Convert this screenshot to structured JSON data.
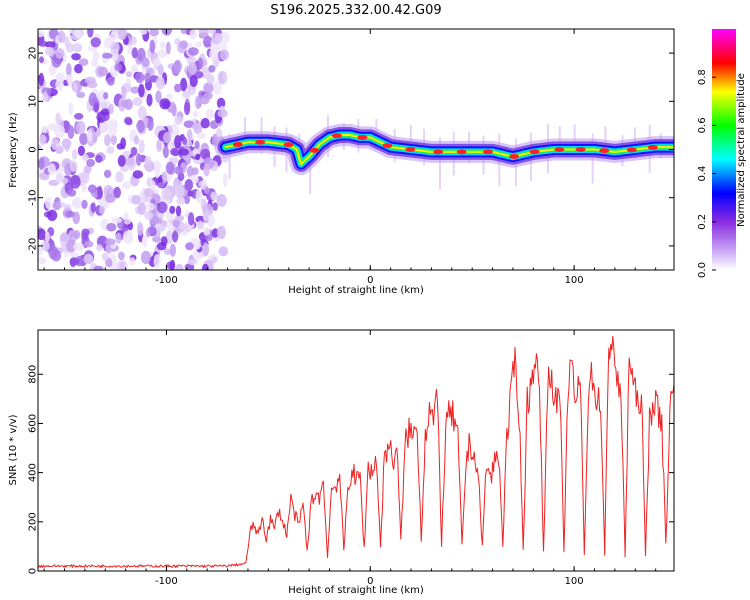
{
  "title": "S196.2025.332.00.42.G09",
  "chart_data": [
    {
      "type": "heatmap",
      "xlabel": "Height of straight line (km)",
      "ylabel": "Frequency (Hz)",
      "xlim": [
        -163,
        149
      ],
      "ylim": [
        -25,
        25
      ],
      "xticks": [
        -100,
        0,
        100
      ],
      "xtick_labels": [
        "-100",
        "0",
        "100"
      ],
      "yticks": [
        -20,
        -10,
        0,
        10,
        20
      ],
      "ytick_labels": [
        "-20",
        "-10",
        "0",
        "10",
        "20"
      ],
      "noise_region_x": [
        -163,
        -71
      ],
      "ridge": {
        "x": [
          -71,
          -60,
          -50,
          -40,
          -36,
          -34,
          -30,
          -25,
          -20,
          -15,
          -10,
          -5,
          0,
          5,
          10,
          20,
          30,
          40,
          50,
          60,
          70,
          80,
          90,
          100,
          110,
          120,
          130,
          140,
          149
        ],
        "freq": [
          0.5,
          1.5,
          1.5,
          1.0,
          0,
          -3.0,
          -1.5,
          1.0,
          2.5,
          3.0,
          3.0,
          2.5,
          2.5,
          1.5,
          0.5,
          0,
          -0.5,
          -0.5,
          -0.5,
          -0.5,
          -1.5,
          -0.5,
          0,
          0,
          0,
          -0.5,
          0,
          0.5,
          0.5
        ]
      },
      "colorbar": {
        "label": "Normalized spectral amplitude",
        "range": [
          0,
          1
        ],
        "ticks": [
          0.0,
          0.2,
          0.4,
          0.6,
          0.8
        ],
        "tick_labels": [
          "0.0",
          "0.2",
          "0.4",
          "0.6",
          "0.8"
        ],
        "colors": [
          "#ffffff",
          "#8a2be2",
          "#0000ff",
          "#00ffff",
          "#00ff00",
          "#ffff00",
          "#ff0000",
          "#ff00ff"
        ]
      }
    },
    {
      "type": "line",
      "xlabel": "Height of straight line (km)",
      "ylabel": "SNR (10 * v/v)",
      "xlim": [
        -163,
        149
      ],
      "ylim": [
        0,
        980
      ],
      "xticks": [
        -100,
        0,
        100
      ],
      "xtick_labels": [
        "-100",
        "0",
        "100"
      ],
      "yticks": [
        0,
        200,
        400,
        600,
        800
      ],
      "ytick_labels": [
        "0",
        "200",
        "400",
        "600",
        "800"
      ],
      "color": "#ee2222",
      "series": {
        "x": [
          -163,
          -71,
          -61,
          -59,
          -57,
          -55,
          -53,
          -51,
          -49,
          -47,
          -45,
          -43,
          -41,
          -39,
          -37,
          -35,
          -33,
          -31,
          -29,
          -27,
          -25,
          -23,
          -21,
          -19,
          -17,
          -15,
          -13,
          -11,
          -9,
          -7,
          -5,
          -3,
          -1,
          1,
          3,
          5,
          7,
          9,
          11,
          13,
          15,
          17,
          19,
          21,
          23,
          25,
          27,
          29,
          31,
          33,
          35,
          37,
          39,
          41,
          43,
          45,
          47,
          49,
          51,
          53,
          55,
          57,
          59,
          61,
          63,
          65,
          67,
          69,
          71,
          73,
          75,
          77,
          79,
          81,
          83,
          85,
          87,
          89,
          91,
          93,
          95,
          97,
          99,
          101,
          103,
          105,
          107,
          109,
          111,
          113,
          115,
          117,
          119,
          121,
          123,
          125,
          127,
          129,
          131,
          133,
          135,
          137,
          139,
          141,
          143,
          145,
          147,
          149
        ],
        "y": [
          20,
          20,
          30,
          160,
          190,
          140,
          220,
          130,
          210,
          170,
          250,
          200,
          150,
          290,
          230,
          180,
          280,
          80,
          270,
          320,
          300,
          360,
          60,
          330,
          350,
          390,
          80,
          330,
          420,
          360,
          390,
          90,
          430,
          400,
          460,
          100,
          470,
          520,
          440,
          510,
          120,
          500,
          580,
          540,
          600,
          130,
          560,
          660,
          610,
          690,
          110,
          580,
          640,
          620,
          530,
          100,
          450,
          520,
          470,
          380,
          100,
          440,
          370,
          450,
          480,
          110,
          540,
          700,
          870,
          650,
          90,
          690,
          760,
          890,
          720,
          80,
          760,
          800,
          680,
          720,
          70,
          760,
          820,
          680,
          780,
          70,
          740,
          800,
          690,
          700,
          60,
          900,
          960,
          760,
          720,
          60,
          880,
          760,
          680,
          720,
          60,
          620,
          700,
          650,
          610,
          110,
          660,
          760
        ]
      }
    }
  ]
}
